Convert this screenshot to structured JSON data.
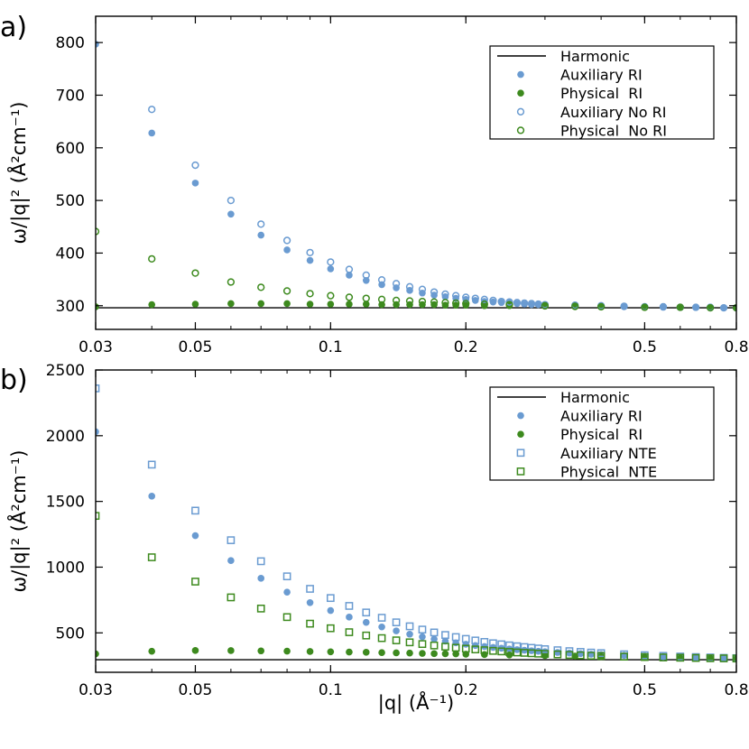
{
  "colors": {
    "auxiliary": "#6a9bd1",
    "physical": "#3d8a1e",
    "harmonic": "#000000"
  },
  "chart_data": [
    {
      "panel_label": "a)",
      "type": "scatter",
      "x_scale": "log",
      "xlim": [
        0.03,
        0.8
      ],
      "ylim": [
        255,
        850
      ],
      "x_ticks": [
        0.03,
        0.05,
        0.1,
        0.2,
        0.5,
        0.8
      ],
      "x_tick_labels": [
        "0.03",
        "0.05",
        "0.1",
        "0.2",
        "0.5",
        "0.8"
      ],
      "y_ticks": [
        300,
        400,
        500,
        600,
        700,
        800
      ],
      "y_tick_labels": [
        "300",
        "400",
        "500",
        "600",
        "700",
        "800"
      ],
      "ylabel": "ω/|q|² (Å²cm⁻¹)",
      "xlabel": "",
      "harmonic": 296,
      "legend_position": "top-right",
      "series": [
        {
          "name": "Harmonic",
          "marker": "line",
          "color": "#000000",
          "x": [
            0.03,
            0.8
          ],
          "y": [
            296,
            296
          ]
        },
        {
          "name": "Auxiliary RI",
          "marker": "filled-circle",
          "color": "#6a9bd1",
          "x": [
            0.03,
            0.04,
            0.05,
            0.06,
            0.07,
            0.08,
            0.09,
            0.1,
            0.11,
            0.12,
            0.13,
            0.14,
            0.15,
            0.16,
            0.17,
            0.18,
            0.19,
            0.2,
            0.21,
            0.22,
            0.23,
            0.24,
            0.25,
            0.26,
            0.27,
            0.28,
            0.29,
            0.3,
            0.35,
            0.4,
            0.45,
            0.5,
            0.55,
            0.6,
            0.65,
            0.7,
            0.75,
            0.8
          ],
          "y": [
            797,
            628,
            533,
            474,
            434,
            406,
            386,
            370,
            358,
            348,
            340,
            334,
            329,
            324,
            320,
            317,
            314,
            312,
            310,
            308,
            307,
            306,
            305,
            304,
            303,
            302,
            302,
            301,
            300,
            299,
            298,
            298,
            297,
            297,
            297,
            297,
            296,
            296
          ]
        },
        {
          "name": "Physical  RI",
          "marker": "filled-circle",
          "color": "#3d8a1e",
          "x": [
            0.03,
            0.04,
            0.05,
            0.06,
            0.07,
            0.08,
            0.09,
            0.1,
            0.11,
            0.12,
            0.13,
            0.14,
            0.15,
            0.16,
            0.17,
            0.18,
            0.19,
            0.2,
            0.22,
            0.25,
            0.3,
            0.35,
            0.4,
            0.5,
            0.6,
            0.7,
            0.8
          ],
          "y": [
            298,
            302,
            303,
            304,
            304,
            304,
            303,
            303,
            303,
            303,
            302,
            302,
            302,
            302,
            302,
            301,
            301,
            301,
            300,
            300,
            299,
            298,
            298,
            297,
            297,
            296,
            296
          ]
        },
        {
          "name": "Auxiliary No RI",
          "marker": "open-circle",
          "color": "#6a9bd1",
          "x": [
            0.04,
            0.05,
            0.06,
            0.07,
            0.08,
            0.09,
            0.1,
            0.11,
            0.12,
            0.13,
            0.14,
            0.15,
            0.16,
            0.17,
            0.18,
            0.19,
            0.2,
            0.21,
            0.22,
            0.23,
            0.24,
            0.25,
            0.26,
            0.27,
            0.28,
            0.29,
            0.3,
            0.35,
            0.4,
            0.45,
            0.5,
            0.55,
            0.6,
            0.65,
            0.7,
            0.75,
            0.8
          ],
          "y": [
            673,
            567,
            500,
            455,
            424,
            401,
            383,
            369,
            358,
            349,
            342,
            336,
            331,
            326,
            322,
            319,
            316,
            314,
            312,
            310,
            308,
            307,
            306,
            305,
            304,
            303,
            302,
            301,
            300,
            299,
            298,
            298,
            297,
            297,
            297,
            296,
            296
          ]
        },
        {
          "name": "Physical  No RI",
          "marker": "open-circle",
          "color": "#3d8a1e",
          "x": [
            0.03,
            0.04,
            0.05,
            0.06,
            0.07,
            0.08,
            0.09,
            0.1,
            0.11,
            0.12,
            0.13,
            0.14,
            0.15,
            0.16,
            0.17,
            0.18,
            0.19,
            0.2,
            0.22,
            0.25,
            0.3,
            0.35,
            0.4,
            0.5,
            0.6,
            0.7,
            0.8
          ],
          "y": [
            441,
            389,
            362,
            345,
            335,
            328,
            323,
            319,
            316,
            314,
            312,
            310,
            309,
            308,
            307,
            306,
            305,
            304,
            303,
            302,
            300,
            299,
            298,
            297,
            297,
            296,
            296
          ]
        }
      ]
    },
    {
      "panel_label": "b)",
      "type": "scatter",
      "x_scale": "log",
      "xlim": [
        0.03,
        0.8
      ],
      "ylim": [
        200,
        2500
      ],
      "x_ticks": [
        0.03,
        0.05,
        0.1,
        0.2,
        0.5,
        0.8
      ],
      "x_tick_labels": [
        "0.03",
        "0.05",
        "0.1",
        "0.2",
        "0.5",
        "0.8"
      ],
      "y_ticks": [
        500,
        1000,
        1500,
        2000,
        2500
      ],
      "y_tick_labels": [
        "500",
        "1000",
        "1500",
        "2000",
        "2500"
      ],
      "ylabel": "ω/|q|² (Å²cm⁻¹)",
      "xlabel": "|q| (Å⁻¹)",
      "harmonic": 296,
      "legend_position": "top-right",
      "series": [
        {
          "name": "Harmonic",
          "marker": "line",
          "color": "#000000",
          "x": [
            0.03,
            0.8
          ],
          "y": [
            296,
            296
          ]
        },
        {
          "name": "Auxiliary RI",
          "marker": "filled-circle",
          "color": "#6a9bd1",
          "x": [
            0.03,
            0.04,
            0.05,
            0.06,
            0.07,
            0.08,
            0.09,
            0.1,
            0.11,
            0.12,
            0.13,
            0.14,
            0.15,
            0.16,
            0.17,
            0.18,
            0.19,
            0.2,
            0.21,
            0.22,
            0.23,
            0.24,
            0.25,
            0.26,
            0.27,
            0.28,
            0.29,
            0.3,
            0.32,
            0.34,
            0.36,
            0.38,
            0.4,
            0.45,
            0.5,
            0.55,
            0.6,
            0.65,
            0.7,
            0.75,
            0.8
          ],
          "y": [
            2030,
            1540,
            1240,
            1050,
            915,
            810,
            730,
            670,
            620,
            580,
            545,
            515,
            490,
            470,
            452,
            437,
            424,
            413,
            404,
            396,
            389,
            383,
            377,
            372,
            368,
            364,
            360,
            357,
            351,
            346,
            342,
            338,
            335,
            328,
            323,
            319,
            315,
            312,
            310,
            308,
            306
          ]
        },
        {
          "name": "Physical  RI",
          "marker": "filled-circle",
          "color": "#3d8a1e",
          "x": [
            0.03,
            0.04,
            0.05,
            0.06,
            0.07,
            0.08,
            0.09,
            0.1,
            0.11,
            0.12,
            0.13,
            0.14,
            0.15,
            0.16,
            0.17,
            0.18,
            0.19,
            0.2,
            0.22,
            0.25,
            0.3,
            0.35,
            0.4,
            0.5,
            0.6,
            0.7,
            0.8
          ],
          "y": [
            340,
            360,
            366,
            365,
            363,
            361,
            358,
            356,
            354,
            352,
            350,
            348,
            346,
            344,
            342,
            341,
            340,
            338,
            335,
            332,
            327,
            323,
            319,
            313,
            308,
            304,
            301
          ]
        },
        {
          "name": "Auxiliary NTE",
          "marker": "open-square",
          "color": "#6a9bd1",
          "x": [
            0.03,
            0.04,
            0.05,
            0.06,
            0.07,
            0.08,
            0.09,
            0.1,
            0.11,
            0.12,
            0.13,
            0.14,
            0.15,
            0.16,
            0.17,
            0.18,
            0.19,
            0.2,
            0.21,
            0.22,
            0.23,
            0.24,
            0.25,
            0.26,
            0.27,
            0.28,
            0.29,
            0.3,
            0.32,
            0.34,
            0.36,
            0.38,
            0.4,
            0.45,
            0.5,
            0.55,
            0.6,
            0.65,
            0.7,
            0.75,
            0.8
          ],
          "y": [
            2360,
            1780,
            1430,
            1205,
            1045,
            930,
            835,
            765,
            705,
            655,
            615,
            580,
            550,
            525,
            503,
            484,
            468,
            454,
            442,
            431,
            421,
            413,
            405,
            398,
            392,
            386,
            381,
            376,
            368,
            361,
            355,
            350,
            346,
            337,
            330,
            325,
            320,
            316,
            313,
            310,
            308
          ]
        },
        {
          "name": "Physical  NTE",
          "marker": "open-square",
          "color": "#3d8a1e",
          "x": [
            0.03,
            0.04,
            0.05,
            0.06,
            0.07,
            0.08,
            0.09,
            0.1,
            0.11,
            0.12,
            0.13,
            0.14,
            0.15,
            0.16,
            0.17,
            0.18,
            0.19,
            0.2,
            0.21,
            0.22,
            0.23,
            0.24,
            0.25,
            0.26,
            0.27,
            0.28,
            0.29,
            0.3,
            0.32,
            0.34,
            0.36,
            0.38,
            0.4,
            0.45,
            0.5,
            0.55,
            0.6,
            0.65,
            0.7,
            0.75,
            0.8
          ],
          "y": [
            1390,
            1075,
            890,
            770,
            685,
            620,
            570,
            535,
            505,
            480,
            460,
            443,
            428,
            415,
            404,
            395,
            387,
            380,
            374,
            368,
            363,
            359,
            355,
            351,
            348,
            345,
            342,
            340,
            336,
            332,
            329,
            326,
            324,
            319,
            316,
            313,
            311,
            309,
            307,
            306,
            305
          ]
        }
      ]
    }
  ]
}
